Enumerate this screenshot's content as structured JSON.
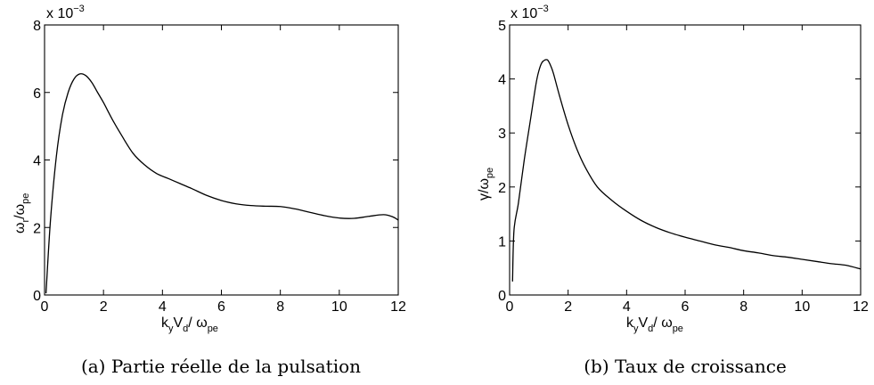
{
  "figure": {
    "panels": [
      {
        "caption": "(a) Partie réelle de la pulsation",
        "exponent": {
          "base": "x 10",
          "power": "−3"
        },
        "xlabel": {
          "k": "k",
          "k_sub": "y",
          "v": "V",
          "v_sub": "d",
          "slash": "/ ",
          "w": "ω",
          "w_sub": "pe"
        },
        "ylabel": {
          "a": "ω",
          "a_sub": "r",
          "b": "/ω",
          "b_sub": "pe"
        },
        "xticks": [
          "0",
          "2",
          "4",
          "6",
          "8",
          "10",
          "12"
        ],
        "yticks": [
          "0",
          "2",
          "4",
          "6",
          "8"
        ]
      },
      {
        "caption": "(b) Taux de croissance",
        "exponent": {
          "base": "x 10",
          "power": "−3"
        },
        "xlabel": {
          "k": "k",
          "k_sub": "y",
          "v": "V",
          "v_sub": "d",
          "slash": "/ ",
          "w": "ω",
          "w_sub": "pe"
        },
        "ylabel": {
          "a": "γ",
          "a_sub": "",
          "b": "/ω",
          "b_sub": "pe"
        },
        "xticks": [
          "0",
          "2",
          "4",
          "6",
          "8",
          "10",
          "12"
        ],
        "yticks": [
          "0",
          "1",
          "2",
          "3",
          "4",
          "5"
        ]
      }
    ]
  },
  "chart_data": [
    {
      "type": "line",
      "title": "(a) Partie réelle de la pulsation",
      "xlabel": "k_y V_d / ω_pe",
      "ylabel": "ω_r / ω_pe",
      "y_multiplier": "x 10^-3",
      "xlim": [
        0,
        12
      ],
      "ylim": [
        0,
        8
      ],
      "grid": false,
      "series": [
        {
          "x": [
            0.05,
            0.2,
            0.4,
            0.6,
            0.8,
            1.0,
            1.2,
            1.4,
            1.6,
            1.8,
            2.0,
            2.3,
            2.6,
            3.0,
            3.4,
            3.8,
            4.2,
            4.6,
            5.0,
            5.5,
            6.0,
            6.5,
            7.0,
            7.5,
            8.0,
            8.5,
            9.0,
            9.5,
            10.0,
            10.5,
            11.0,
            11.5,
            11.8,
            12.0
          ],
          "y": [
            0.05,
            2.2,
            4.1,
            5.3,
            6.0,
            6.4,
            6.55,
            6.5,
            6.3,
            6.0,
            5.7,
            5.2,
            4.75,
            4.2,
            3.85,
            3.6,
            3.45,
            3.3,
            3.15,
            2.95,
            2.8,
            2.7,
            2.65,
            2.63,
            2.62,
            2.55,
            2.45,
            2.35,
            2.28,
            2.27,
            2.33,
            2.38,
            2.32,
            2.22
          ]
        }
      ]
    },
    {
      "type": "line",
      "title": "(b) Taux de croissance",
      "xlabel": "k_y V_d / ω_pe",
      "ylabel": "γ / ω_pe",
      "y_multiplier": "x 10^-3",
      "xlim": [
        0,
        12
      ],
      "ylim": [
        0,
        5
      ],
      "grid": false,
      "series": [
        {
          "x": [
            0.1,
            0.15,
            0.3,
            0.5,
            0.7,
            0.9,
            1.0,
            1.1,
            1.2,
            1.3,
            1.4,
            1.5,
            1.7,
            2.0,
            2.3,
            2.6,
            3.0,
            3.5,
            4.0,
            4.5,
            5.0,
            5.5,
            6.0,
            6.5,
            7.0,
            7.5,
            8.0,
            8.5,
            9.0,
            9.5,
            10.0,
            10.5,
            11.0,
            11.5,
            12.0
          ],
          "y": [
            0.25,
            1.2,
            1.7,
            2.5,
            3.2,
            3.9,
            4.15,
            4.3,
            4.35,
            4.35,
            4.25,
            4.1,
            3.7,
            3.15,
            2.7,
            2.35,
            2.0,
            1.75,
            1.55,
            1.38,
            1.25,
            1.15,
            1.07,
            1.0,
            0.93,
            0.88,
            0.82,
            0.78,
            0.73,
            0.7,
            0.66,
            0.62,
            0.58,
            0.55,
            0.48
          ]
        }
      ]
    }
  ]
}
